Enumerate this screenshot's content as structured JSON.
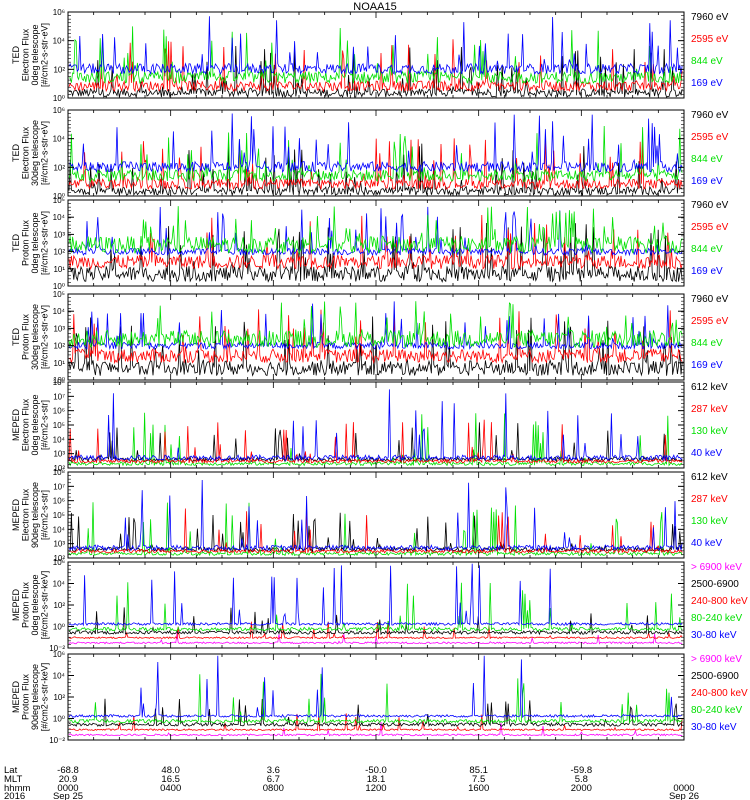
{
  "title": "NOAA15",
  "colors": {
    "black": "#000000",
    "red": "#ff0000",
    "green": "#00e000",
    "blue": "#0000ff",
    "magenta": "#ff00ff"
  },
  "chart_data": [
    {
      "type": "line",
      "instrument": "TED",
      "ylabel": [
        "TED",
        "Electron Flux",
        "0deg telescope",
        "[#/cm2-s-str-eV]"
      ],
      "y_scale": "log",
      "ylim": [
        1,
        1000000
      ],
      "y_ticks": [
        "10⁰",
        "10²",
        "10⁴",
        "10⁶"
      ],
      "series": [
        {
          "name": "7960 eV",
          "color": "black"
        },
        {
          "name": "2595 eV",
          "color": "red"
        },
        {
          "name": "844 eV",
          "color": "green"
        },
        {
          "name": "169 eV",
          "color": "blue"
        }
      ]
    },
    {
      "type": "line",
      "instrument": "TED",
      "ylabel": [
        "TED",
        "Electron Flux",
        "30deg telescope",
        "[#/cm2-s-str-eV]"
      ],
      "y_scale": "log",
      "ylim": [
        1,
        1000000
      ],
      "y_ticks": [
        "10⁰",
        "10²",
        "10⁴",
        "10⁶"
      ],
      "series": [
        {
          "name": "7960 eV",
          "color": "black"
        },
        {
          "name": "2595 eV",
          "color": "red"
        },
        {
          "name": "844 eV",
          "color": "green"
        },
        {
          "name": "169 eV",
          "color": "blue"
        }
      ]
    },
    {
      "type": "line",
      "instrument": "TED",
      "ylabel": [
        "TED",
        "Proton Flux",
        "0deg telescope",
        "[#/cm2-s-str-eV]"
      ],
      "y_scale": "log",
      "ylim": [
        1,
        100000
      ],
      "y_ticks": [
        "10⁰",
        "10¹",
        "10²",
        "10³",
        "10⁴",
        "10⁵"
      ],
      "series": [
        {
          "name": "7960 eV",
          "color": "black"
        },
        {
          "name": "2595 eV",
          "color": "red"
        },
        {
          "name": "844 eV",
          "color": "green"
        },
        {
          "name": "169 eV",
          "color": "blue"
        }
      ]
    },
    {
      "type": "line",
      "instrument": "TED",
      "ylabel": [
        "TED",
        "Proton Flux",
        "30deg telescope",
        "[#/cm2-s-str-eV]"
      ],
      "y_scale": "log",
      "ylim": [
        1,
        100000
      ],
      "y_ticks": [
        "10⁰",
        "10¹",
        "10²",
        "10³",
        "10⁴",
        "10⁵"
      ],
      "series": [
        {
          "name": "7960 eV",
          "color": "black"
        },
        {
          "name": "2595 eV",
          "color": "red"
        },
        {
          "name": "844 eV",
          "color": "green"
        },
        {
          "name": "169 eV",
          "color": "blue"
        }
      ]
    },
    {
      "type": "line",
      "instrument": "MEPED",
      "ylabel": [
        "MEPED",
        "Electron Flux",
        "0deg telescope",
        "[#/cm2-s-str]"
      ],
      "y_scale": "log",
      "ylim": [
        100,
        100000000
      ],
      "y_ticks": [
        "10²",
        "10³",
        "10⁴",
        "10⁵",
        "10⁶",
        "10⁷",
        "10⁸"
      ],
      "series": [
        {
          "name": "612 keV",
          "color": "black"
        },
        {
          "name": "287 keV",
          "color": "red"
        },
        {
          "name": "130 keV",
          "color": "green"
        },
        {
          "name": "40 keV",
          "color": "blue"
        }
      ]
    },
    {
      "type": "line",
      "instrument": "MEPED",
      "ylabel": [
        "MEPED",
        "Electron Flux",
        "90deg telescope",
        "[#/cm2-s-str]"
      ],
      "y_scale": "log",
      "ylim": [
        100,
        100000000
      ],
      "y_ticks": [
        "10²",
        "10³",
        "10⁴",
        "10⁵",
        "10⁶",
        "10⁷",
        "10⁸"
      ],
      "series": [
        {
          "name": "612 keV",
          "color": "black"
        },
        {
          "name": "287 keV",
          "color": "red"
        },
        {
          "name": "130 keV",
          "color": "green"
        },
        {
          "name": "40 keV",
          "color": "blue"
        }
      ]
    },
    {
      "type": "line",
      "instrument": "MEPED",
      "ylabel": [
        "MEPED",
        "Proton Flux",
        "0deg telescope",
        "[#/cm2-s-str-keV]"
      ],
      "y_scale": "log",
      "ylim": [
        0.01,
        1000000
      ],
      "y_ticks": [
        "10⁻²",
        "10⁰",
        "10²",
        "10⁴",
        "10⁶"
      ],
      "series": [
        {
          "name": "> 6900 keV",
          "color": "magenta"
        },
        {
          "name": "2500-6900",
          "color": "black"
        },
        {
          "name": "240-800 keV",
          "color": "red"
        },
        {
          "name": "80-240 keV",
          "color": "green"
        },
        {
          "name": "30-80 keV",
          "color": "blue"
        }
      ]
    },
    {
      "type": "line",
      "instrument": "MEPED",
      "ylabel": [
        "MEPED",
        "Proton Flux",
        "90deg telescope",
        "[#/cm2-s-str-keV]"
      ],
      "y_scale": "log",
      "ylim": [
        0.01,
        1000000
      ],
      "y_ticks": [
        "10⁻²",
        "10⁰",
        "10²",
        "10⁴",
        "10⁶"
      ],
      "series": [
        {
          "name": "> 6900 keV",
          "color": "magenta"
        },
        {
          "name": "2500-6900",
          "color": "black"
        },
        {
          "name": "240-800 keV",
          "color": "red"
        },
        {
          "name": "80-240 keV",
          "color": "green"
        },
        {
          "name": "30-80 keV",
          "color": "blue"
        }
      ]
    }
  ],
  "x_axis": {
    "row_labels": [
      "Lat",
      "MLT",
      "hhmm",
      "2016"
    ],
    "ticks": [
      {
        "lat": "-68.8",
        "mlt": "20.9",
        "hhmm": "0000",
        "date": "Sep 25"
      },
      {
        "lat": "48.0",
        "mlt": "16.5",
        "hhmm": "0400",
        "date": ""
      },
      {
        "lat": "3.6",
        "mlt": "6.7",
        "hhmm": "0800",
        "date": ""
      },
      {
        "lat": "-50.0",
        "mlt": "18.1",
        "hhmm": "1200",
        "date": ""
      },
      {
        "lat": "85.1",
        "mlt": "7.5",
        "hhmm": "1600",
        "date": ""
      },
      {
        "lat": "-59.8",
        "mlt": "5.8",
        "hhmm": "2000",
        "date": ""
      },
      {
        "lat": "",
        "mlt": "",
        "hhmm": "0000",
        "date": "Sep 26"
      }
    ]
  }
}
